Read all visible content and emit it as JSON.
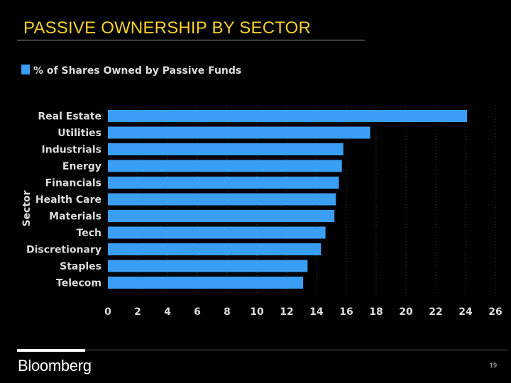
{
  "page": {
    "title": "PASSIVE OWNERSHIP BY SECTOR",
    "logo": "Bloomberg",
    "page_number": "19",
    "accent_color": "#f5cf2b",
    "bar_color": "#3a9ef5"
  },
  "chart_data": {
    "type": "bar",
    "orientation": "horizontal",
    "title": "",
    "legend": [
      "% of Shares Owned by Passive Funds"
    ],
    "xlabel": "",
    "ylabel": "Sector",
    "categories": [
      "Real Estate",
      "Utilities",
      "Industrials",
      "Energy",
      "Financials",
      "Health Care",
      "Materials",
      "Tech",
      "Discretionary",
      "Staples",
      "Telecom"
    ],
    "series": [
      {
        "name": "% of Shares Owned by Passive Funds",
        "values": [
          24.1,
          17.6,
          15.8,
          15.7,
          15.5,
          15.3,
          15.2,
          14.6,
          14.3,
          13.4,
          13.1
        ]
      }
    ],
    "xlim": [
      0,
      26
    ],
    "xticks": [
      0,
      2,
      4,
      6,
      8,
      10,
      12,
      14,
      16,
      18,
      20,
      22,
      24,
      26
    ],
    "grid": true
  }
}
